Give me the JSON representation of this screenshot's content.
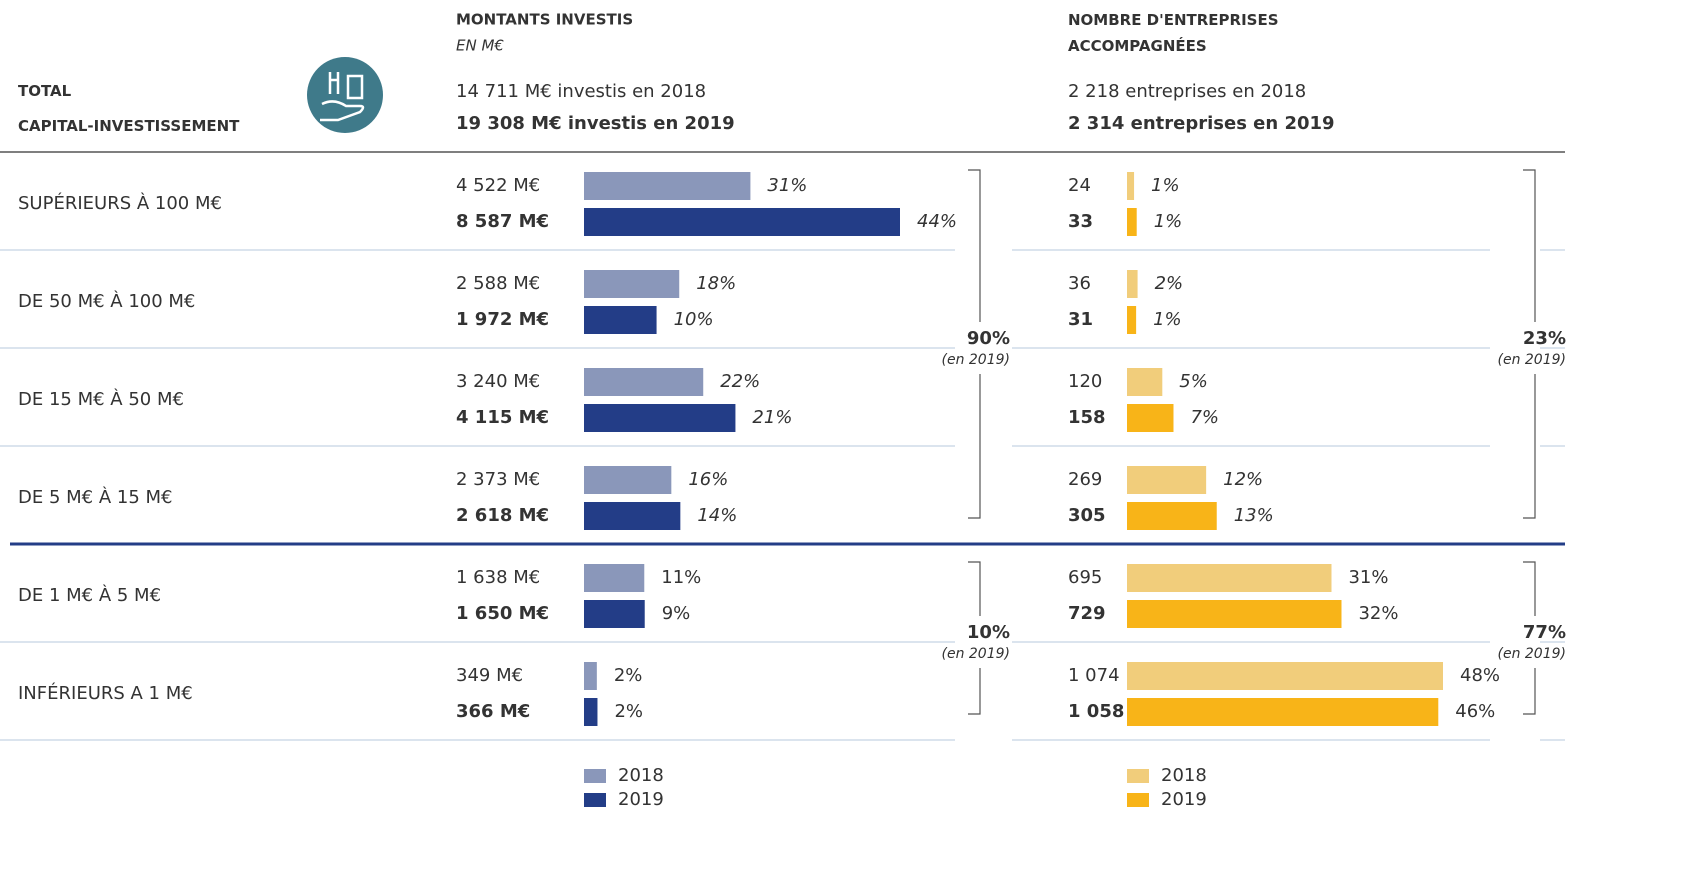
{
  "header": {
    "title": "TOTAL CAPITAL-INVESTISSEMENT"
  },
  "categories": [
    "SUPÉRIEURS À 100 M€",
    "DE 50 M€ À 100 M€",
    "DE 15 M€ À 50 M€",
    "DE 5 M€ À 15 M€",
    "DE 1 M€ À 5 M€",
    "INFÉRIEURS A 1 M€"
  ],
  "amounts": {
    "title": "MONTANTS INVESTIS",
    "subtitle": "EN M€",
    "total_2018": "14 711 M€ investis en 2018",
    "total_2019": "19 308 M€ investis en 2019",
    "series": [
      {
        "name": "2018",
        "color": "#8a97ba",
        "values": [
          4522,
          2588,
          3240,
          2373,
          1638,
          349
        ],
        "value_labels": [
          "4 522 M€",
          "2 588 M€",
          "3 240 M€",
          "2 373 M€",
          "1 638 M€",
          "349 M€"
        ],
        "shares": [
          31,
          18,
          22,
          16,
          11,
          2
        ],
        "share_labels": [
          "31%",
          "18%",
          "22%",
          "16%",
          "11%",
          "2%"
        ]
      },
      {
        "name": "2019",
        "color": "#233d87",
        "values": [
          8587,
          1972,
          4115,
          2618,
          1650,
          366
        ],
        "value_labels": [
          "8 587 M€",
          "1 972 M€",
          "4 115 M€",
          "2 618 M€",
          "1 650 M€",
          "366 M€"
        ],
        "shares": [
          44,
          10,
          21,
          14,
          9,
          2
        ],
        "share_labels": [
          "44%",
          "10%",
          "21%",
          "14%",
          "9%",
          "2%"
        ]
      }
    ],
    "groups": [
      {
        "value": 90,
        "label": "90%",
        "note": "(en 2019)"
      },
      {
        "value": 10,
        "label": "10%",
        "note": "(en 2019)"
      }
    ]
  },
  "companies": {
    "title": "NOMBRE D'ENTREPRISES ACCOMPAGNÉES",
    "total_2018": "2 218 entreprises en 2018",
    "total_2019": "2 314 entreprises en 2019",
    "series": [
      {
        "name": "2018",
        "color": "#f1cd7b",
        "values": [
          24,
          36,
          120,
          269,
          695,
          1074
        ],
        "value_labels": [
          "24",
          "36",
          "120",
          "269",
          "695",
          "1 074"
        ],
        "shares": [
          1,
          2,
          5,
          12,
          31,
          48
        ],
        "share_labels": [
          "1%",
          "2%",
          "5%",
          "12%",
          "31%",
          "48%"
        ]
      },
      {
        "name": "2019",
        "color": "#f8b418",
        "values": [
          33,
          31,
          158,
          305,
          729,
          1058
        ],
        "value_labels": [
          "33",
          "31",
          "158",
          "305",
          "729",
          "1 058"
        ],
        "shares": [
          1,
          1,
          7,
          13,
          32,
          46
        ],
        "share_labels": [
          "1%",
          "1%",
          "7%",
          "13%",
          "32%",
          "46%"
        ]
      }
    ],
    "groups": [
      {
        "value": 23,
        "label": "23%",
        "note": "(en 2019)"
      },
      {
        "value": 77,
        "label": "77%",
        "note": "(en 2019)"
      }
    ]
  }
}
